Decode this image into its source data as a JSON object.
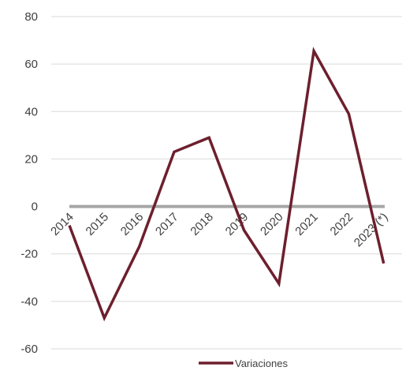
{
  "chart_data": {
    "type": "line",
    "categories": [
      "2014",
      "2015",
      "2016",
      "2017",
      "2018",
      "2019",
      "2020",
      "2021",
      "2022",
      "2023 (*)"
    ],
    "series": [
      {
        "name": "Variaciones",
        "values": [
          -8,
          -47,
          -17,
          23,
          29,
          -10,
          -32.5,
          65.5,
          39,
          -24
        ],
        "color": "#6d1f2e"
      }
    ],
    "zero_line_color": "#a6a6a6",
    "gridline_color": "#d9d9d9",
    "ylim": [
      -60,
      80
    ],
    "yticks": [
      80,
      60,
      40,
      20,
      0,
      -20,
      -40,
      -60
    ],
    "grid": true,
    "legend": "bottom",
    "title": "",
    "xlabel": "",
    "ylabel": ""
  }
}
